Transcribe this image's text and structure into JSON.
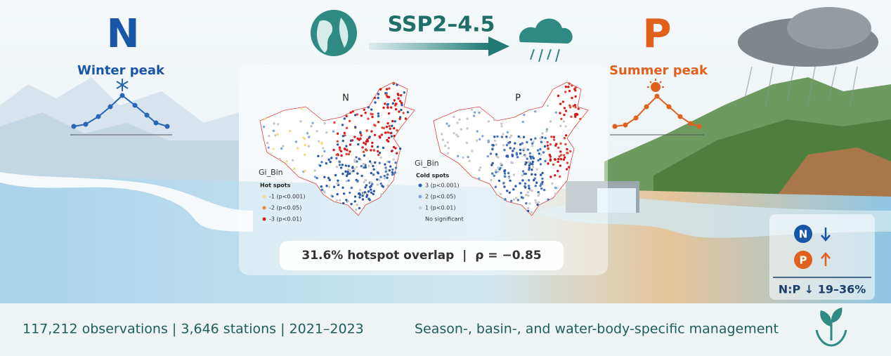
{
  "header": {
    "n_label": "N",
    "n_season": "Winter peak",
    "scenario": "SSP2–4.5",
    "p_label": "P",
    "p_season": "Summer peak"
  },
  "maps": {
    "n_title": "N",
    "p_title": "P",
    "hot_legend": {
      "title": "Gi_Bin",
      "subtitle": "Hot spots",
      "items": [
        "-1 (p<0.001)",
        "-2 (p<0.05)",
        "-3 (p<0.01)"
      ]
    },
    "cold_legend": {
      "title": "Gi_Bin",
      "subtitle": "Cold spots",
      "items": [
        "3 (p<0.001)",
        "2 (p<0.05)",
        "1 (p<0.01)",
        "No significant"
      ]
    }
  },
  "overlap_note": "31.6% hotspot overlap  |  ρ = −0.85",
  "trend": {
    "n_label": "N",
    "p_label": "P",
    "ratio": "N:P ↓ 19–36%"
  },
  "footer": {
    "stats": "117,212 observations | 3,646 stations | 2021–2023",
    "management": "Season-, basin-, and water-body-specific management"
  }
}
